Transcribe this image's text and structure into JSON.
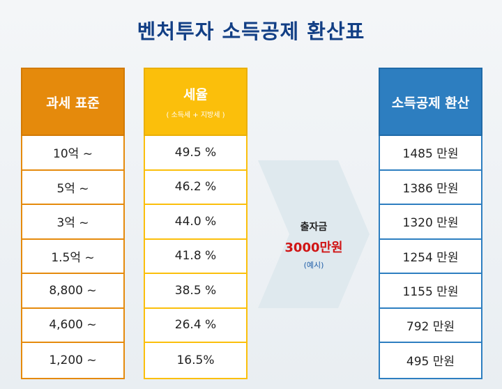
{
  "title": {
    "main": "벤처투자  소득공제  환산표"
  },
  "columns": {
    "tax_base": {
      "header": "과세 표준",
      "rows": [
        "10억 ~",
        "5억 ~",
        "3억 ~",
        "1.5억 ~",
        "8,800 ~",
        "4,600 ~",
        "1,200 ~"
      ]
    },
    "tax_rate": {
      "header": "세율",
      "subheader": "( 소득세 + 지방세 )",
      "rows": [
        "49.5 %",
        "46.2 %",
        "44.0 %",
        "41.8 %",
        "38.5 %",
        "26.4 %",
        "16.5%"
      ]
    },
    "deduction": {
      "header": "소득공제 환산",
      "rows": [
        "1485 만원",
        "1386 만원",
        "1320 만원",
        "1254 만원",
        "1155 만원",
        "792 만원",
        "495 만원"
      ]
    }
  },
  "arrow": {
    "label": "출자금",
    "amount": "3000만원",
    "note": "(예시)"
  },
  "colors": {
    "title": "#123f85",
    "tax_base": "#e58a0c",
    "tax_rate": "#fbbf0b",
    "deduction": "#2d7ec0",
    "amount": "#d01515",
    "arrow": "#dfe9ee"
  }
}
